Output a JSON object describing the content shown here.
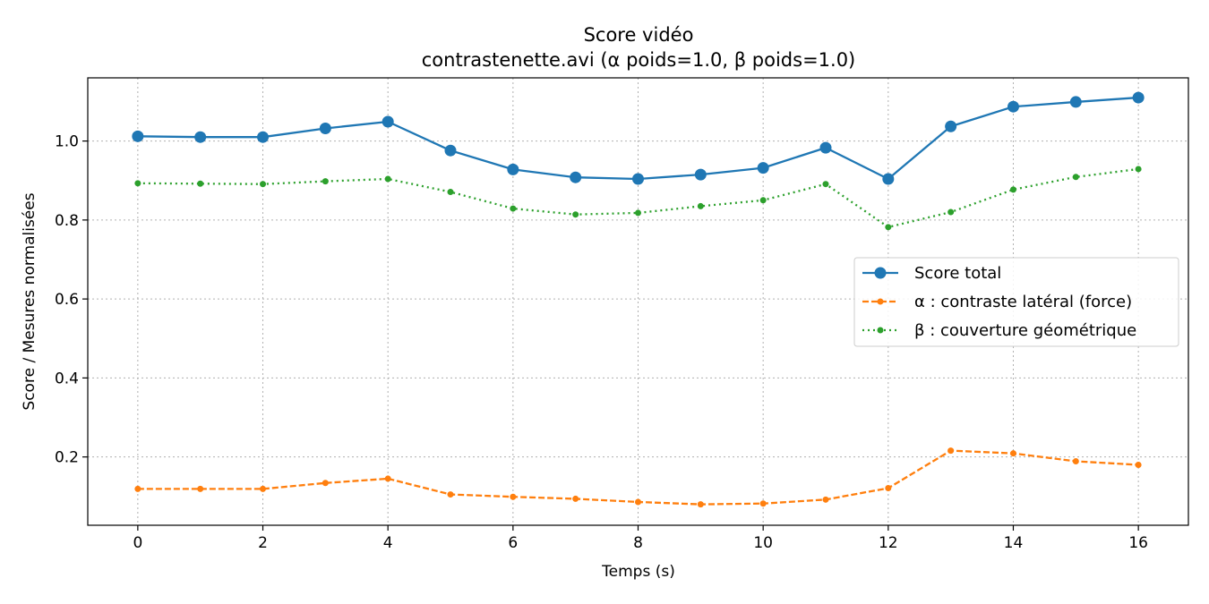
{
  "chart_data": {
    "type": "line",
    "title": "Score vidéo",
    "subtitle": "contrastenette.avi (α poids=1.0, β poids=1.0)",
    "xlabel": "Temps (s)",
    "ylabel": "Score / Mesures normalisées",
    "x": [
      0,
      1,
      2,
      3,
      4,
      5,
      6,
      7,
      8,
      9,
      10,
      11,
      12,
      13,
      14,
      15,
      16
    ],
    "xlim": [
      -0.8,
      16.8
    ],
    "ylim": [
      0.027,
      1.16
    ],
    "xticks": [
      0,
      2,
      4,
      6,
      8,
      10,
      12,
      14,
      16
    ],
    "yticks": [
      0.2,
      0.4,
      0.6,
      0.8,
      1.0
    ],
    "grid": true,
    "legend_position": "center-right",
    "series": [
      {
        "name": "Score total",
        "color": "#1f77b4",
        "style": "solid",
        "marker": "large-circle",
        "values": [
          1.012,
          1.01,
          1.01,
          1.032,
          1.049,
          0.976,
          0.928,
          0.908,
          0.904,
          0.915,
          0.932,
          0.983,
          0.904,
          1.037,
          1.087,
          1.099,
          1.11
        ]
      },
      {
        "name": "α : contraste latéral (force)",
        "color": "#ff7f0e",
        "style": "dashed",
        "marker": "small-circle",
        "values": [
          0.119,
          0.119,
          0.119,
          0.134,
          0.145,
          0.105,
          0.099,
          0.094,
          0.086,
          0.08,
          0.082,
          0.092,
          0.121,
          0.216,
          0.209,
          0.189,
          0.18
        ]
      },
      {
        "name": "β : couverture géométrique",
        "color": "#2ca02c",
        "style": "dotted",
        "marker": "small-circle",
        "values": [
          0.893,
          0.892,
          0.891,
          0.898,
          0.904,
          0.871,
          0.829,
          0.814,
          0.818,
          0.835,
          0.85,
          0.891,
          0.782,
          0.82,
          0.877,
          0.909,
          0.929
        ]
      }
    ]
  }
}
